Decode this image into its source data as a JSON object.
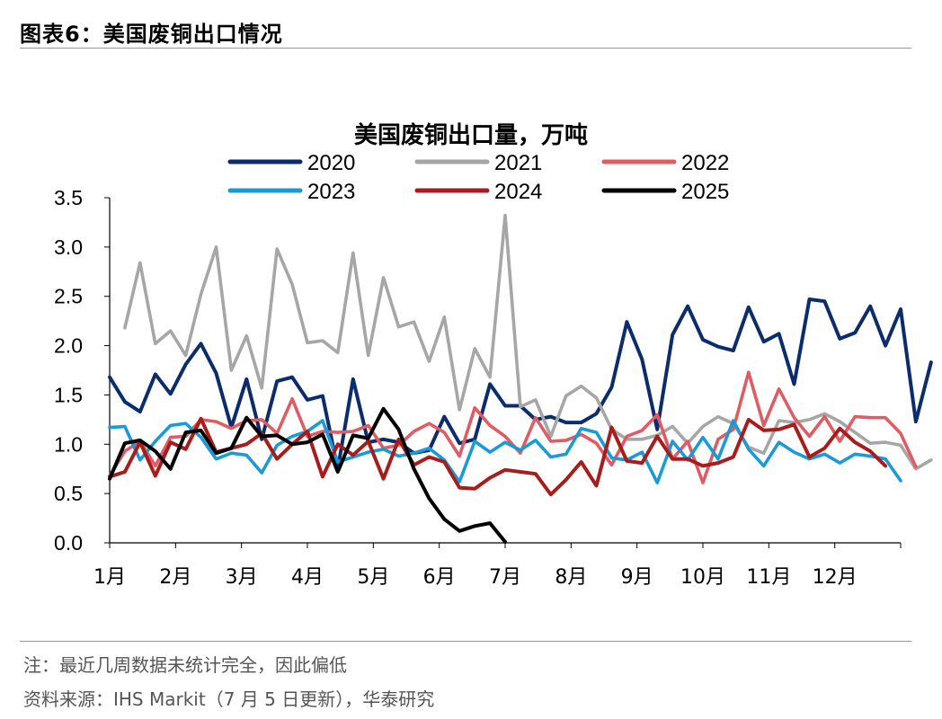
{
  "figure": {
    "label": "图表6：",
    "title": "美国废铜出口情况"
  },
  "footnotes": {
    "note": "注：最近几周数据未统计完全，因此偏低",
    "source": "资料来源：IHS Markit（7 月 5 日更新），华泰研究"
  },
  "chart_data": {
    "type": "line",
    "title": "美国废铜出口量，万吨",
    "xlabel": "",
    "ylabel": "",
    "ylim": [
      0,
      3.5
    ],
    "yticks": [
      "0.0",
      "0.5",
      "1.0",
      "1.5",
      "2.0",
      "2.5",
      "3.0",
      "3.5"
    ],
    "month_labels": [
      "1月",
      "2月",
      "3月",
      "4月",
      "5月",
      "6月",
      "7月",
      "8月",
      "9月",
      "10月",
      "11月",
      "12月"
    ],
    "x_unit": "week",
    "grid": false,
    "legend_position": "top",
    "series": [
      {
        "name": "2020",
        "color": "#0b2d6b",
        "values": [
          1.68,
          1.43,
          1.33,
          1.71,
          1.51,
          1.81,
          2.02,
          1.72,
          1.17,
          1.66,
          1.05,
          1.64,
          1.68,
          1.45,
          1.49,
          0.75,
          1.66,
          1.02,
          1.05,
          1.02,
          0.91,
          0.94,
          1.28,
          1.01,
          1.05,
          1.61,
          1.39,
          1.39,
          1.25,
          1.28,
          1.22,
          1.22,
          1.31,
          1.58,
          2.24,
          1.86,
          1.15,
          2.11,
          2.4,
          2.06,
          1.99,
          1.95,
          2.39,
          2.04,
          2.12,
          1.61,
          2.47,
          2.45,
          2.07,
          2.13,
          2.4,
          2.0,
          2.37,
          1.23,
          1.83
        ]
      },
      {
        "name": "2021",
        "color": "#a6a6a6",
        "values": [
          null,
          2.18,
          2.84,
          2.02,
          2.15,
          1.9,
          2.52,
          3.0,
          1.75,
          2.1,
          1.57,
          2.98,
          2.62,
          2.03,
          2.05,
          1.93,
          2.94,
          1.9,
          2.69,
          2.19,
          2.24,
          1.84,
          2.29,
          1.35,
          1.97,
          1.68,
          3.32,
          1.38,
          1.45,
          1.08,
          1.49,
          1.59,
          1.47,
          1.15,
          1.05,
          1.05,
          1.09,
          1.18,
          1.01,
          1.18,
          1.28,
          1.21,
          0.97,
          0.91,
          1.24,
          1.22,
          1.25,
          1.31,
          1.23,
          1.12,
          1.01,
          1.02,
          0.99,
          0.75,
          0.84
        ]
      },
      {
        "name": "2022",
        "color": "#e05c64",
        "values": [
          0.68,
          0.93,
          1.03,
          0.78,
          1.07,
          1.08,
          1.25,
          1.23,
          1.16,
          1.24,
          1.25,
          1.11,
          1.46,
          1.08,
          1.13,
          1.12,
          1.13,
          1.19,
          0.96,
          0.99,
          1.13,
          1.21,
          1.12,
          0.88,
          1.37,
          1.19,
          1.08,
          0.91,
          1.27,
          1.03,
          1.04,
          1.1,
          1.01,
          0.79,
          1.08,
          1.14,
          1.3,
          0.85,
          1.03,
          0.61,
          1.05,
          1.15,
          1.73,
          1.19,
          1.56,
          1.27,
          1.08,
          1.28,
          1.03,
          1.28,
          1.27,
          1.27,
          1.11,
          0.77
        ]
      },
      {
        "name": "2023",
        "color": "#1a9ad6",
        "values": [
          1.17,
          1.18,
          0.84,
          1.03,
          1.19,
          1.21,
          1.07,
          0.85,
          0.91,
          0.89,
          0.71,
          0.99,
          1.08,
          1.13,
          1.24,
          0.82,
          0.87,
          0.92,
          0.95,
          0.88,
          0.91,
          0.96,
          0.84,
          0.62,
          1.03,
          0.92,
          1.02,
          0.94,
          1.04,
          0.87,
          0.9,
          1.16,
          1.12,
          0.86,
          0.84,
          0.92,
          0.61,
          1.03,
          0.84,
          1.07,
          0.85,
          1.24,
          0.95,
          0.78,
          1.02,
          0.92,
          0.85,
          0.9,
          0.81,
          0.9,
          0.88,
          0.85,
          0.63
        ]
      },
      {
        "name": "2024",
        "color": "#a81c1c",
        "values": [
          0.67,
          0.72,
          1.02,
          0.68,
          1.02,
          0.95,
          1.26,
          0.92,
          0.96,
          1.0,
          1.11,
          0.85,
          1.0,
          1.13,
          0.67,
          1.0,
          0.89,
          1.03,
          0.65,
          1.05,
          0.79,
          0.87,
          0.82,
          0.56,
          0.55,
          0.66,
          0.74,
          0.72,
          0.7,
          0.49,
          0.64,
          0.82,
          0.58,
          1.17,
          0.83,
          0.81,
          1.08,
          0.85,
          0.85,
          0.78,
          0.81,
          0.87,
          1.25,
          1.14,
          1.15,
          1.2,
          0.87,
          0.96,
          1.16,
          1.02,
          0.93,
          0.78
        ]
      },
      {
        "name": "2025",
        "color": "#000000",
        "values": [
          0.65,
          1.01,
          1.04,
          0.93,
          0.75,
          1.12,
          1.14,
          0.91,
          0.96,
          1.27,
          1.08,
          1.09,
          1.0,
          1.02,
          1.1,
          0.72,
          1.09,
          1.06,
          1.36,
          1.15,
          0.75,
          0.45,
          0.24,
          0.12,
          0.17,
          0.2,
          0.01
        ]
      }
    ]
  }
}
